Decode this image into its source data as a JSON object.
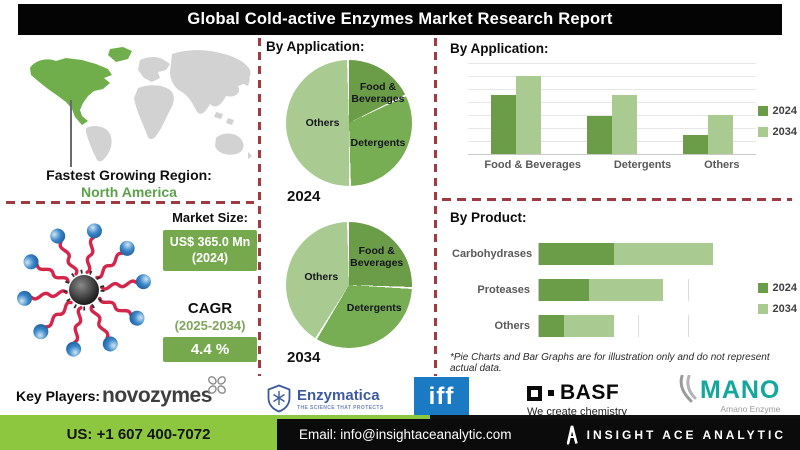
{
  "title": "Global Cold-active Enzymes Market Research Report",
  "left": {
    "region_label": "Fastest Growing Region:",
    "region_value": "North America",
    "market_size_label": "Market Size:",
    "market_size_value": "US$ 365.0 Mn (2024)",
    "cagr_label": "CAGR",
    "cagr_period": "(2025-2034)",
    "cagr_value": "4.4 %"
  },
  "footnote": "*Pie Charts and Bar Graphs are for illustration only and do not represent actual data.",
  "key_players": {
    "label": "Key Players:",
    "novozymes": {
      "name": "novozymes"
    },
    "enzymatica": {
      "name": "Enzymatica",
      "tagline": "THE SCIENCE THAT PROTECTS"
    },
    "iff": {
      "name": "iff"
    },
    "basf": {
      "name": "BASF",
      "tagline": "We create chemistry"
    },
    "amano": {
      "name": "MANO",
      "tagline": "Amano Enzyme"
    }
  },
  "footer": {
    "phone": "US: +1 607 400-7072",
    "email": "Email: info@insightaceanalytic.com",
    "brand": "INSIGHT ACE ANALYTIC"
  },
  "colors": {
    "green_dark": "#6b9c48",
    "green_mid": "#77ad53",
    "green_light": "#a9cb92",
    "accent_green": "#8dc63f",
    "box_green": "#76a94e",
    "dash_red": "#9e3a40",
    "map_highlight": "#6fae4a",
    "iff_blue": "#1a7ac4",
    "enzymatica_blue": "#3d5a9e",
    "amano_teal": "#14a79e"
  },
  "chart_data": [
    {
      "type": "pie",
      "title": "By Application:",
      "year": "2024",
      "labels": [
        "Food & Beverages",
        "Detergents",
        "Others"
      ],
      "values": [
        18,
        32,
        50
      ],
      "colors": [
        "#6b9c48",
        "#77ad53",
        "#a9cb92"
      ],
      "note": "slices start at 12 o'clock, clockwise"
    },
    {
      "type": "pie",
      "title": "By Application:",
      "year": "2034",
      "labels": [
        "Food & Beverages",
        "Detergents",
        "Others"
      ],
      "values": [
        26,
        33,
        41
      ],
      "colors": [
        "#6b9c48",
        "#77ad53",
        "#a9cb92"
      ],
      "note": "slices start at 12 o'clock, clockwise"
    },
    {
      "type": "bar",
      "title": "By Application:",
      "categories": [
        "Food & Beverages",
        "Detergents",
        "Others"
      ],
      "series": [
        {
          "name": "2024",
          "values": [
            65,
            42,
            21
          ],
          "color": "#6b9c48"
        },
        {
          "name": "2034",
          "values": [
            86,
            65,
            43
          ],
          "color": "#a9cb92"
        }
      ],
      "ylim": [
        0,
        100
      ],
      "grid": true,
      "legend_position": "right"
    },
    {
      "type": "bar",
      "orientation": "horizontal",
      "stacked": true,
      "title": "By Product:",
      "categories": [
        "Carbohydrases",
        "Proteases",
        "Others"
      ],
      "series": [
        {
          "name": "2024",
          "values": [
            30,
            20,
            10
          ],
          "color": "#6b9c48"
        },
        {
          "name": "2034",
          "values": [
            40,
            30,
            20
          ],
          "color": "#a9cb92"
        }
      ],
      "xlim": [
        0,
        80
      ],
      "grid": true,
      "legend_position": "right"
    }
  ]
}
